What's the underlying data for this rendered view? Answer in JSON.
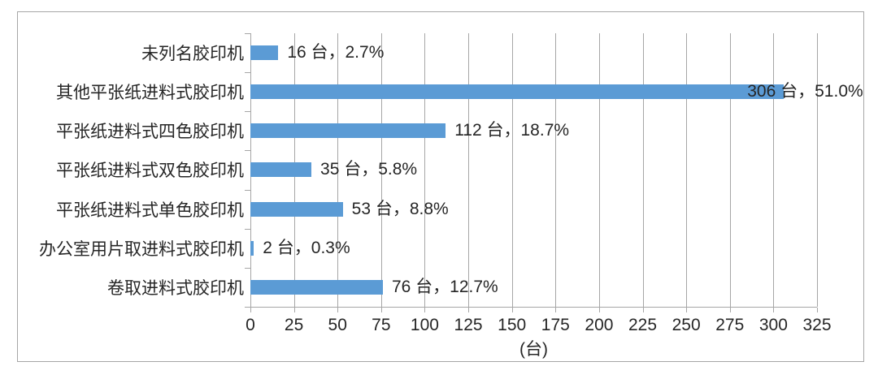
{
  "chart_data": {
    "type": "bar",
    "orientation": "horizontal",
    "categories": [
      "未列名胶印机",
      "其他平张纸进料式胶印机",
      "平张纸进料式四色胶印机",
      "平张纸进料式双色胶印机",
      "平张纸进料式单色胶印机",
      "办公室用片取进料式胶印机",
      "卷取进料式胶印机"
    ],
    "values": [
      16,
      306,
      112,
      35,
      53,
      2,
      76
    ],
    "percentages": [
      2.7,
      51.0,
      18.7,
      5.8,
      8.8,
      0.3,
      12.7
    ],
    "labels": [
      "16 台，2.7%",
      "306 台，51.0%",
      "112 台，18.7%",
      "35 台，5.8%",
      "53 台，8.8%",
      "2 台，0.3%",
      "76 台，12.7%"
    ],
    "unit": "台",
    "xlabel": "(台)",
    "xlim": [
      0,
      325
    ],
    "xticks": [
      0,
      25,
      50,
      75,
      100,
      125,
      150,
      175,
      200,
      225,
      250,
      275,
      300,
      325
    ],
    "grid": true,
    "legend": "none",
    "bar_color": "#5B9BD5",
    "gridline_color": "#A6A6A6",
    "axis_color": "#A6A6A6",
    "frame_border_color": "#A6A6A6",
    "text_color": "#262626"
  }
}
